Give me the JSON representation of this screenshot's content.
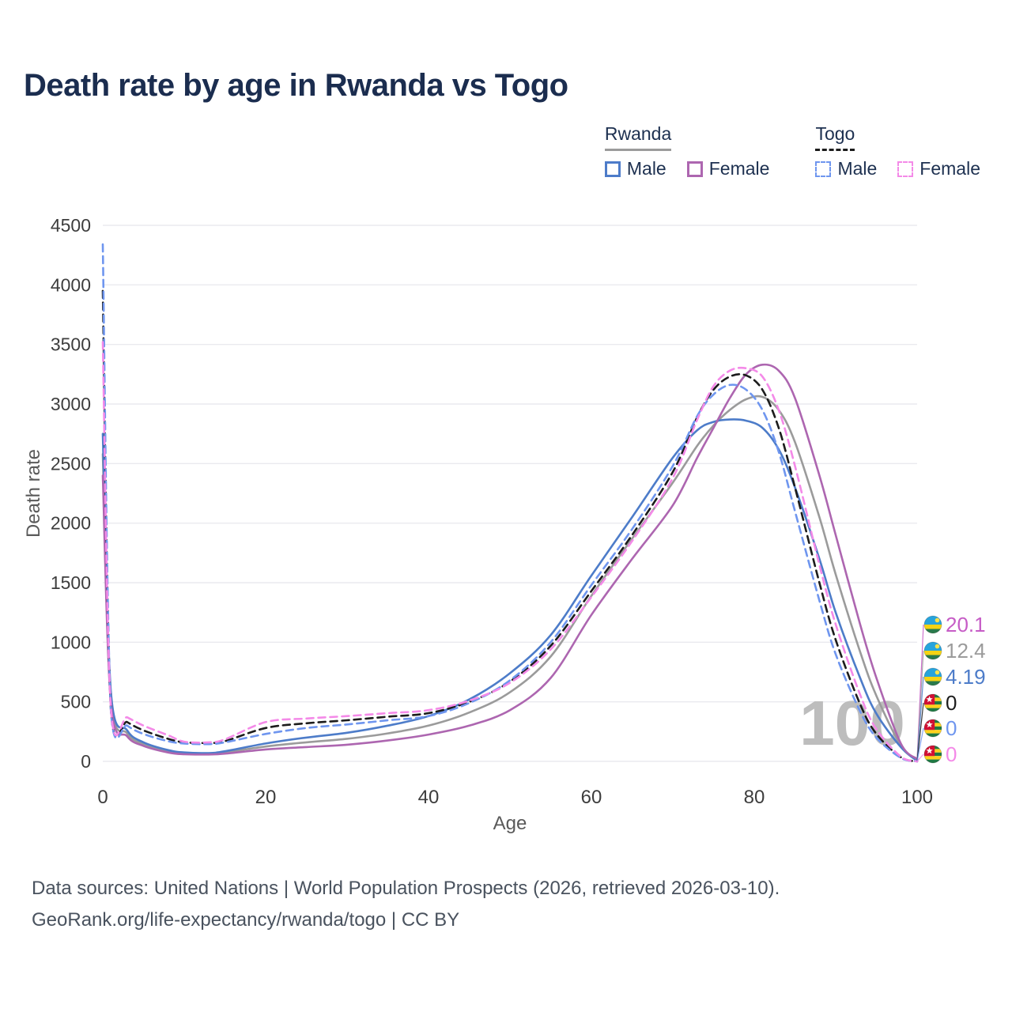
{
  "title": "Death rate by age in Rwanda vs Togo",
  "legend": {
    "rwanda": {
      "label": "Rwanda",
      "male_label": "Male",
      "female_label": "Female"
    },
    "togo": {
      "label": "Togo",
      "male_label": "Male",
      "female_label": "Female"
    }
  },
  "watermark": "100",
  "footer": {
    "line1": "Data sources: United Nations | World Population Prospects (2026, retrieved 2026-03-10).",
    "line2": "GeoRank.org/life-expectancy/rwanda/togo | CC BY"
  },
  "end_labels": [
    {
      "value": "20.1",
      "color": "#c65cc6",
      "flag": "rwanda",
      "series": "Rwanda Female"
    },
    {
      "value": "12.4",
      "color": "#9b9b9b",
      "flag": "rwanda",
      "series": "Rwanda Both sexes"
    },
    {
      "value": "4.19",
      "color": "#4d7cc9",
      "flag": "rwanda",
      "series": "Rwanda Male"
    },
    {
      "value": "0",
      "color": "#1c1c1c",
      "flag": "togo",
      "series": "Togo Both sexes"
    },
    {
      "value": "0",
      "color": "#6f96ef",
      "flag": "togo",
      "series": "Togo Male"
    },
    {
      "value": "0",
      "color": "#f48ae8",
      "flag": "togo",
      "series": "Togo Female"
    }
  ],
  "chart_data": {
    "type": "line",
    "title": "Death rate by age in Rwanda vs Togo",
    "xlabel": "Age",
    "ylabel": "Death rate",
    "xlim": [
      0,
      100
    ],
    "ylim": [
      0,
      4500
    ],
    "xticks": [
      0,
      20,
      40,
      60,
      80,
      100
    ],
    "yticks": [
      0,
      500,
      1000,
      1500,
      2000,
      2500,
      3000,
      3500,
      4000,
      4500
    ],
    "grid": true,
    "legend_position": "top-right",
    "x": [
      0,
      1,
      3,
      5,
      8,
      10,
      13,
      15,
      20,
      25,
      30,
      35,
      40,
      45,
      50,
      55,
      60,
      65,
      70,
      73,
      75,
      77,
      79,
      81,
      83,
      85,
      88,
      90,
      93,
      95,
      98,
      100
    ],
    "series": [
      {
        "name": "Rwanda Male",
        "color": "#4d7cc9",
        "dash": false,
        "values": [
          2750,
          580,
          260,
          160,
          95,
          75,
          70,
          85,
          150,
          200,
          240,
          300,
          380,
          520,
          740,
          1060,
          1560,
          2050,
          2550,
          2780,
          2850,
          2870,
          2860,
          2800,
          2620,
          2300,
          1700,
          1250,
          700,
          400,
          120,
          4.19
        ]
      },
      {
        "name": "Rwanda Female",
        "color": "#ad66b0",
        "dash": false,
        "values": [
          2400,
          480,
          210,
          130,
          75,
          60,
          58,
          65,
          100,
          120,
          140,
          175,
          225,
          300,
          430,
          700,
          1230,
          1700,
          2150,
          2550,
          2800,
          3050,
          3250,
          3330,
          3280,
          3050,
          2400,
          1900,
          1150,
          700,
          150,
          20.1
        ]
      },
      {
        "name": "Rwanda Both sexes",
        "color": "#9b9b9b",
        "dash": false,
        "values": [
          2580,
          530,
          235,
          145,
          85,
          68,
          64,
          75,
          125,
          160,
          190,
          235,
          300,
          410,
          580,
          880,
          1390,
          1870,
          2340,
          2650,
          2820,
          2950,
          3040,
          3060,
          2950,
          2680,
          2050,
          1570,
          920,
          550,
          135,
          12.4
        ]
      },
      {
        "name": "Togo Male",
        "color": "#6f96ef",
        "dash": true,
        "values": [
          4340,
          420,
          300,
          230,
          170,
          150,
          145,
          160,
          230,
          280,
          310,
          345,
          380,
          490,
          680,
          1000,
          1480,
          1950,
          2480,
          2900,
          3080,
          3160,
          3120,
          2950,
          2600,
          2100,
          1350,
          900,
          420,
          200,
          30,
          0
        ]
      },
      {
        "name": "Togo Female",
        "color": "#f48ae8",
        "dash": true,
        "values": [
          3520,
          440,
          370,
          300,
          220,
          165,
          160,
          185,
          330,
          360,
          380,
          405,
          430,
          510,
          660,
          940,
          1380,
          1850,
          2380,
          2870,
          3150,
          3280,
          3300,
          3230,
          2950,
          2480,
          1650,
          1150,
          560,
          270,
          40,
          0
        ]
      },
      {
        "name": "Togo Both sexes",
        "color": "#1c1c1c",
        "dash": true,
        "values": [
          3950,
          430,
          330,
          260,
          190,
          160,
          155,
          170,
          280,
          320,
          345,
          375,
          405,
          500,
          670,
          970,
          1430,
          1900,
          2430,
          2890,
          3120,
          3230,
          3240,
          3120,
          2800,
          2300,
          1500,
          1020,
          480,
          230,
          35,
          0
        ]
      }
    ]
  }
}
